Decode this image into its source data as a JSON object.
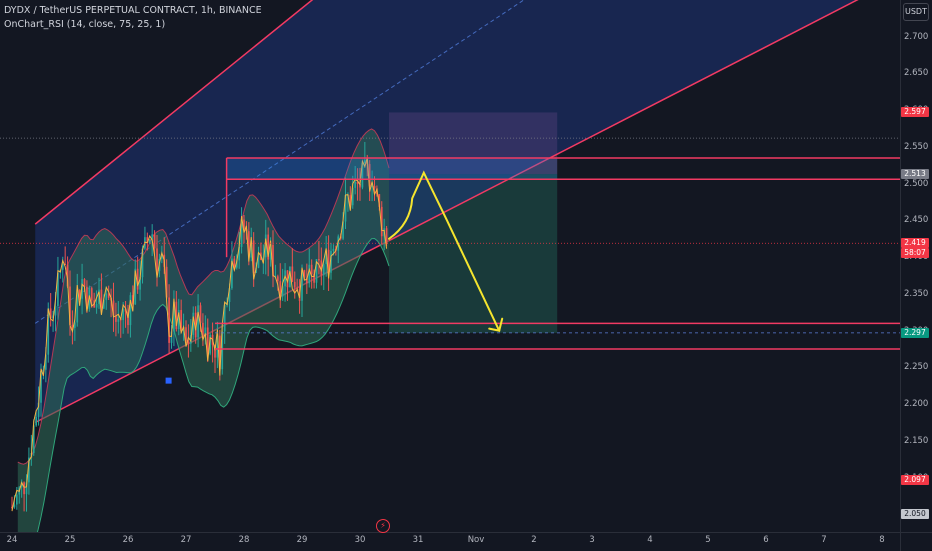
{
  "legend": {
    "symbol_line": "DYDX / TetherUS PERPETUAL CONTRACT, 1h, BINANCE",
    "indicator_line": "OnChart_RSI (14, close, 75, 25, 1)"
  },
  "currency": "USDT",
  "colors": {
    "bg": "#131722",
    "up": "#26a69a",
    "down": "#ef5350",
    "channel_line": "#f23a63",
    "channel_fill": "#1e3a8a",
    "rsi_band": "#2f6b55",
    "rsi_line": "#f5b342",
    "stop_zone": "#6b3a5e",
    "target_zone": "#1c4a45",
    "drawing": "#f5e52e"
  },
  "chart_data": {
    "type": "candlestick",
    "title": "DYDX / TetherUS PERPETUAL CONTRACT, 1h, BINANCE",
    "xlabel": "",
    "ylabel": "",
    "x_ticks": [
      "24",
      "25",
      "26",
      "27",
      "28",
      "29",
      "30",
      "31",
      "Nov",
      "2",
      "3",
      "4",
      "5",
      "6",
      "7",
      "8"
    ],
    "y_ticks": [
      2.7,
      2.65,
      2.6,
      2.55,
      2.5,
      2.45,
      2.4,
      2.35,
      2.3,
      2.25,
      2.2,
      2.15,
      2.1,
      2.05
    ],
    "ylim": [
      2.026,
      2.75
    ],
    "price_path": [
      [
        24.0,
        2.06
      ],
      [
        24.2,
        2.09
      ],
      [
        24.4,
        2.18
      ],
      [
        24.6,
        2.3
      ],
      [
        24.8,
        2.36
      ],
      [
        24.9,
        2.42
      ],
      [
        25.0,
        2.31
      ],
      [
        25.2,
        2.37
      ],
      [
        25.4,
        2.33
      ],
      [
        25.6,
        2.36
      ],
      [
        25.8,
        2.31
      ],
      [
        26.0,
        2.33
      ],
      [
        26.2,
        2.38
      ],
      [
        26.3,
        2.41
      ],
      [
        26.4,
        2.44
      ],
      [
        26.5,
        2.4
      ],
      [
        26.6,
        2.39
      ],
      [
        26.7,
        2.3
      ],
      [
        26.8,
        2.32
      ],
      [
        27.0,
        2.28
      ],
      [
        27.2,
        2.32
      ],
      [
        27.4,
        2.29
      ],
      [
        27.6,
        2.27
      ],
      [
        27.7,
        2.36
      ],
      [
        27.8,
        2.4
      ],
      [
        28.0,
        2.44
      ],
      [
        28.2,
        2.39
      ],
      [
        28.4,
        2.41
      ],
      [
        28.6,
        2.37
      ],
      [
        28.8,
        2.38
      ],
      [
        29.0,
        2.36
      ],
      [
        29.2,
        2.37
      ],
      [
        29.4,
        2.39
      ],
      [
        29.6,
        2.43
      ],
      [
        29.8,
        2.48
      ],
      [
        30.0,
        2.5
      ],
      [
        30.1,
        2.51
      ],
      [
        30.2,
        2.52
      ],
      [
        30.3,
        2.47
      ],
      [
        30.4,
        2.44
      ],
      [
        30.5,
        2.42
      ]
    ],
    "price_labels": [
      {
        "value": 2.597,
        "text": "2.597",
        "color": "#f23645"
      },
      {
        "value": 2.513,
        "text": "2.513",
        "color": "#787b86"
      },
      {
        "value": 2.419,
        "text": "2.419",
        "color": "#f23645"
      },
      {
        "value": 2.406,
        "text": "58:07",
        "color": "#f23645"
      },
      {
        "value": 2.297,
        "text": "2.297",
        "color": "#089981"
      },
      {
        "value": 2.097,
        "text": "2.097",
        "color": "#f23645"
      },
      {
        "value": 2.05,
        "text": "2.050",
        "color": "#c5c8cf"
      }
    ],
    "horizontal_levels": [
      2.535,
      2.506,
      2.31,
      2.275
    ],
    "position_tool": {
      "x_start": 30.5,
      "x_end": 33.4,
      "stop": 2.597,
      "entry": 2.513,
      "target": 2.297
    },
    "channel": {
      "upper_start": [
        24.4,
        2.445
      ],
      "upper_end": [
        33.4,
        3.02
      ],
      "lower_start": [
        24.4,
        2.175
      ],
      "lower_end": [
        38.2,
        2.735
      ]
    },
    "drawn_path": [
      [
        30.5,
        2.425
      ],
      [
        30.9,
        2.48
      ],
      [
        31.1,
        2.515
      ],
      [
        31.5,
        2.45
      ],
      [
        32.4,
        2.3
      ]
    ]
  }
}
